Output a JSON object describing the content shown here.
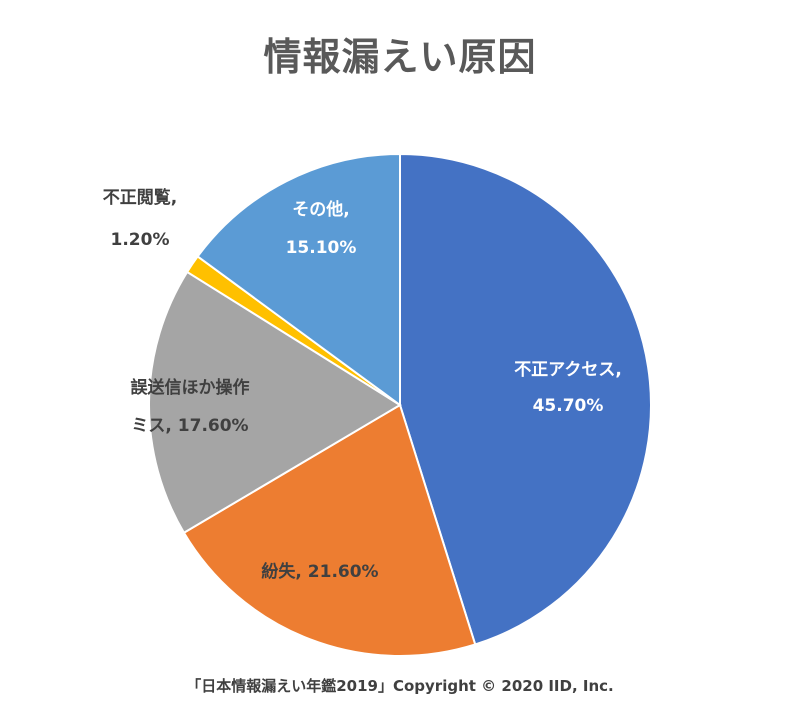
{
  "chart_data": {
    "type": "pie",
    "title": "情報漏えい原因",
    "slices": [
      {
        "label_lines": [
          "不正アクセス,",
          "45.70%"
        ],
        "value": 45.7,
        "color": "#4472C4",
        "label_color": "#ffffff"
      },
      {
        "label_lines": [
          "紛失, 21.60%"
        ],
        "value": 21.6,
        "color": "#ED7D31",
        "label_color": "#404040"
      },
      {
        "label_lines": [
          "誤送信ほか操作",
          "ミス, 17.60%"
        ],
        "value": 17.6,
        "color": "#A5A5A5",
        "label_color": "#404040"
      },
      {
        "label_lines": [
          "不正閲覧,",
          "1.20%"
        ],
        "value": 1.2,
        "color": "#FFC000",
        "label_color": "#404040"
      },
      {
        "label_lines": [
          "その他,",
          "15.10%"
        ],
        "value": 15.1,
        "color": "#5B9BD5",
        "label_color": "#ffffff"
      }
    ],
    "start_angle": "12 o'clock",
    "direction": "clockwise",
    "legend": "none"
  },
  "footer": {
    "source": "「日本情報漏えい年鑑2019」Copyright © 2020 IID, Inc."
  }
}
